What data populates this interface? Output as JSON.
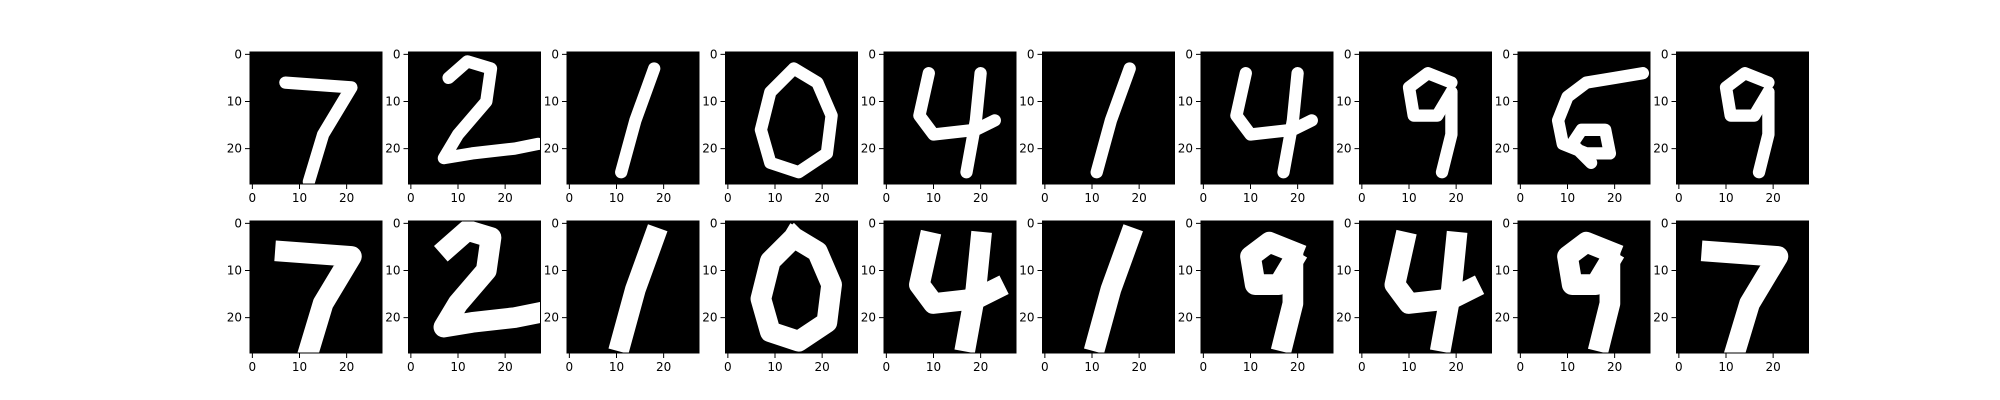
{
  "chart_data": {
    "type": "heatmap",
    "layout": {
      "rows": 2,
      "cols": 10
    },
    "colormap": "gray",
    "background_color": "#000000",
    "foreground_color": "#ffffff",
    "axis": {
      "xlim": [
        -0.5,
        27.5
      ],
      "ylim": [
        27.5,
        -0.5
      ],
      "xticks": [
        0,
        10,
        20
      ],
      "yticks": [
        0,
        10,
        20
      ],
      "xtick_labels": [
        "0",
        "10",
        "20"
      ],
      "ytick_labels": [
        "0",
        "10",
        "20"
      ]
    },
    "panels": [
      {
        "row": 0,
        "digit": "7",
        "style": "original"
      },
      {
        "row": 0,
        "digit": "2",
        "style": "original"
      },
      {
        "row": 0,
        "digit": "1",
        "style": "original"
      },
      {
        "row": 0,
        "digit": "0",
        "style": "original"
      },
      {
        "row": 0,
        "digit": "4",
        "style": "original"
      },
      {
        "row": 0,
        "digit": "1",
        "style": "original"
      },
      {
        "row": 0,
        "digit": "4",
        "style": "original"
      },
      {
        "row": 0,
        "digit": "9",
        "style": "original"
      },
      {
        "row": 0,
        "digit": "5",
        "style": "original"
      },
      {
        "row": 0,
        "digit": "9",
        "style": "original"
      },
      {
        "row": 1,
        "digit": "7",
        "style": "reconstruction"
      },
      {
        "row": 1,
        "digit": "2",
        "style": "reconstruction"
      },
      {
        "row": 1,
        "digit": "1",
        "style": "reconstruction"
      },
      {
        "row": 1,
        "digit": "0",
        "style": "reconstruction"
      },
      {
        "row": 1,
        "digit": "4",
        "style": "reconstruction"
      },
      {
        "row": 1,
        "digit": "1",
        "style": "reconstruction"
      },
      {
        "row": 1,
        "digit": "9",
        "style": "reconstruction"
      },
      {
        "row": 1,
        "digit": "4",
        "style": "reconstruction"
      },
      {
        "row": 1,
        "digit": "9",
        "style": "reconstruction"
      },
      {
        "row": 1,
        "digit": "7",
        "style": "reconstruction"
      }
    ]
  }
}
